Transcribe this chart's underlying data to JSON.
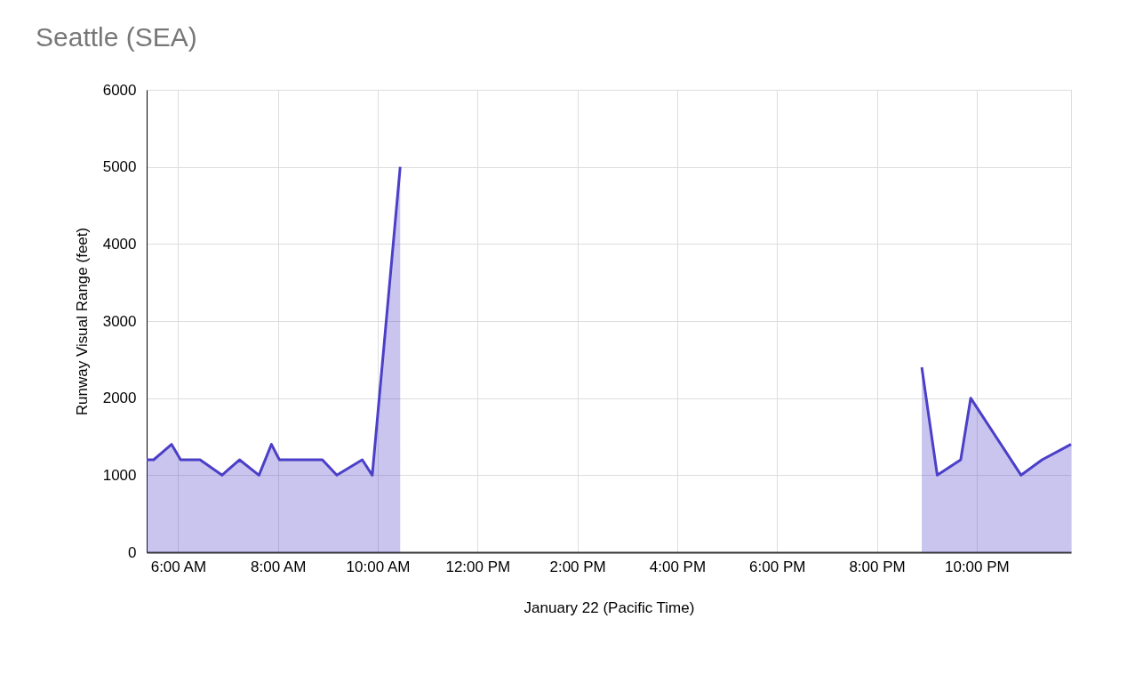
{
  "chart_data": {
    "type": "area",
    "title": "Seattle (SEA)",
    "xlabel": "January 22 (Pacific Time)",
    "ylabel": "Runway Visual Range (feet)",
    "x": [
      5.37,
      5.51,
      5.87,
      6.05,
      6.44,
      6.88,
      7.23,
      7.62,
      7.87,
      8.03,
      8.89,
      9.18,
      9.69,
      9.89,
      10.45,
      15.5,
      20.9,
      21.21,
      21.68,
      21.88,
      22.89,
      23.31,
      23.89
    ],
    "series": [
      {
        "color": "#4b3fc8",
        "values": [
          1200,
          1200,
          1400,
          1200,
          1200,
          1000,
          1200,
          1000,
          1400,
          1200,
          1200,
          1000,
          1200,
          1000,
          5000,
          null,
          2400,
          1000,
          1200,
          2000,
          1000,
          1200,
          1400
        ]
      }
    ],
    "xlim": [
      5.37,
      23.89
    ],
    "ylim": [
      0,
      6000
    ],
    "yticks": [
      0,
      1000,
      2000,
      3000,
      4000,
      5000,
      6000
    ],
    "xticks": [
      {
        "value": 6,
        "label": "6:00 AM"
      },
      {
        "value": 8,
        "label": "8:00 AM"
      },
      {
        "value": 10,
        "label": "10:00 AM"
      },
      {
        "value": 12,
        "label": "12:00 PM"
      },
      {
        "value": 14,
        "label": "2:00 PM"
      },
      {
        "value": 16,
        "label": "4:00 PM"
      },
      {
        "value": 18,
        "label": "6:00 PM"
      },
      {
        "value": 20,
        "label": "8:00 PM"
      },
      {
        "value": 22,
        "label": "10:00 PM"
      }
    ],
    "grid": true,
    "marker": "none",
    "line_style": "solid"
  }
}
